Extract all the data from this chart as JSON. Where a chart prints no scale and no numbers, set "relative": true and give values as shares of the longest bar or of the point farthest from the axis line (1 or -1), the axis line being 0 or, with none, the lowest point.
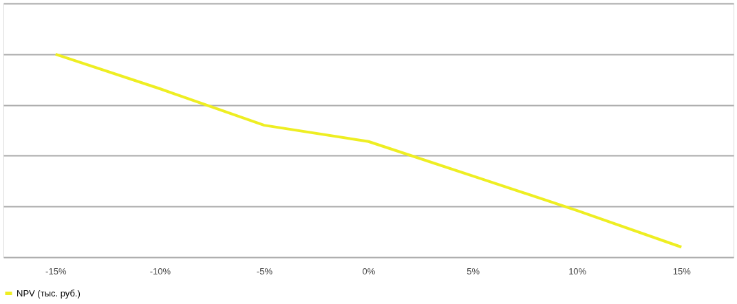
{
  "chart_data": {
    "type": "line",
    "relative": true,
    "categories": [
      "-15%",
      "-10%",
      "-5%",
      "0%",
      "5%",
      "10%",
      "15%"
    ],
    "series": [
      {
        "name": "NPV (тыс. руб.)",
        "color": "#eeee22",
        "values": [
          1,
          0.83,
          0.65,
          0.57,
          0.4,
          0.23,
          0.05
        ]
      }
    ],
    "grid": "y",
    "legend": "bottom",
    "marker": "none",
    "line_style": "solid"
  }
}
